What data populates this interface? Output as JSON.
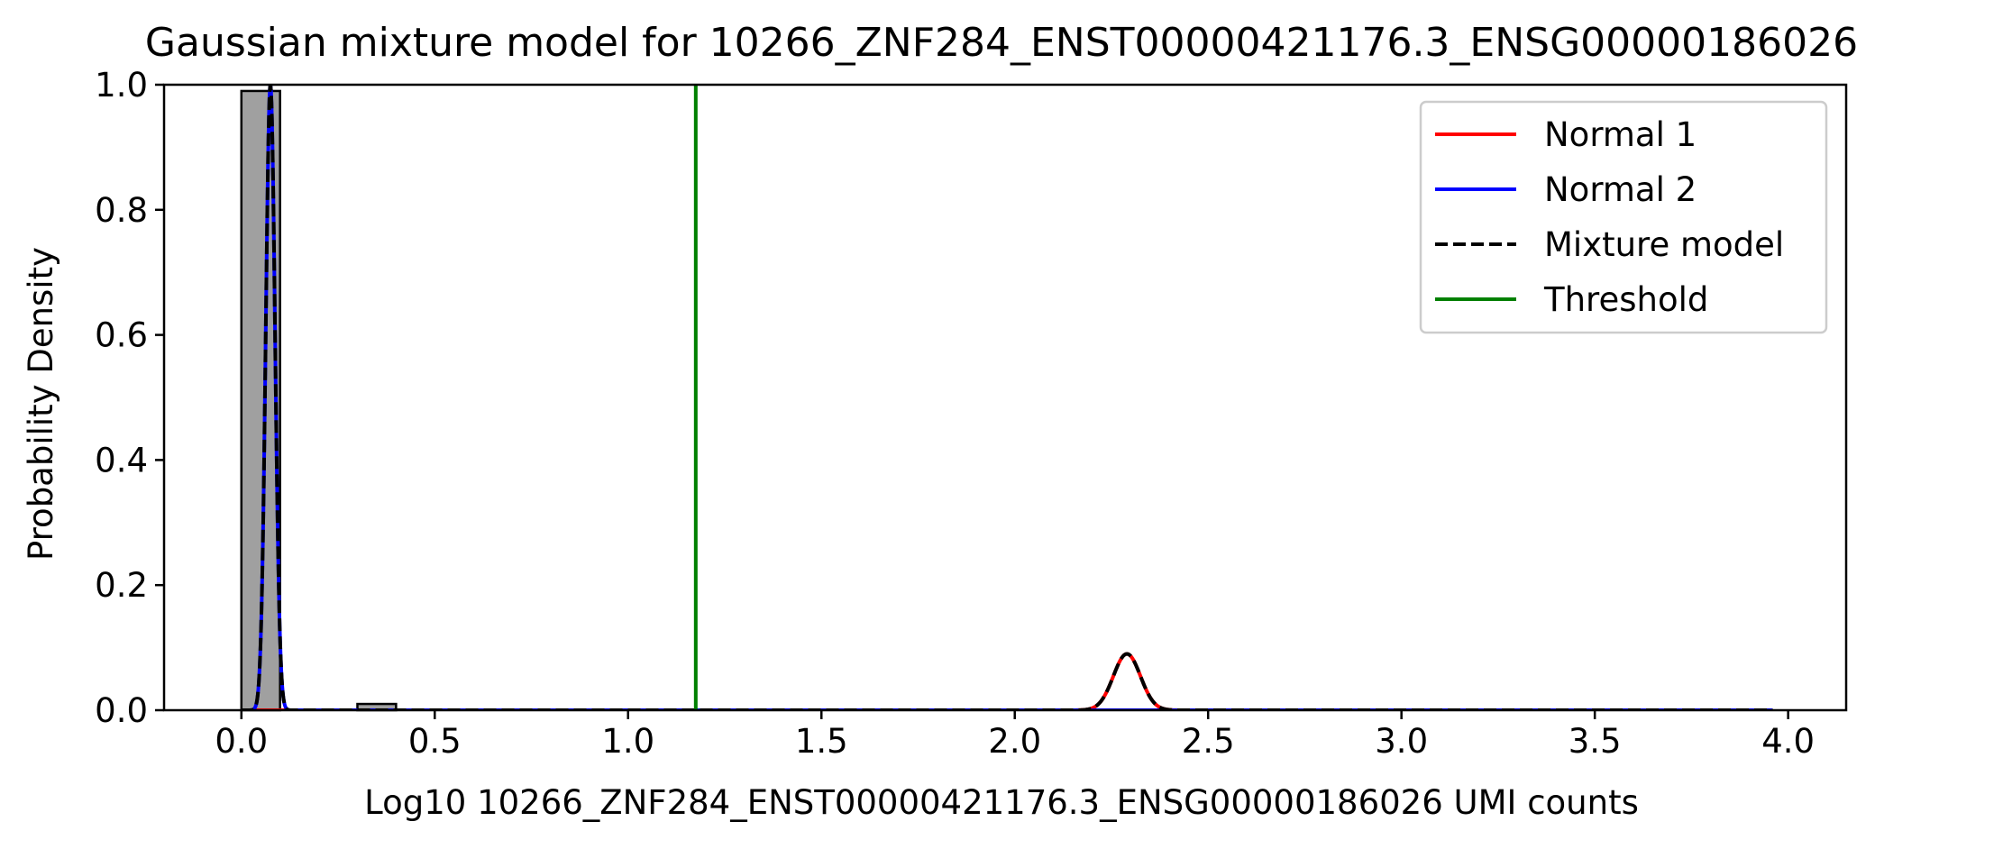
{
  "chart_data": {
    "type": "histogram",
    "title": "Gaussian mixture model for 10266_ZNF284_ENST00000421176.3_ENSG00000186026",
    "xlabel": "Log10 10266_ZNF284_ENST00000421176.3_ENSG00000186026 UMI counts",
    "ylabel": "Probability Density",
    "xlim": [
      -0.2,
      4.15
    ],
    "ylim": [
      0,
      1.0
    ],
    "xticks": [
      0.0,
      0.5,
      1.0,
      1.5,
      2.0,
      2.5,
      3.0,
      3.5,
      4.0
    ],
    "xtick_labels": [
      "0.0",
      "0.5",
      "1.0",
      "1.5",
      "2.0",
      "2.5",
      "3.0",
      "3.5",
      "4.0"
    ],
    "yticks": [
      0.0,
      0.2,
      0.4,
      0.6,
      0.8,
      1.0
    ],
    "ytick_labels": [
      "0.0",
      "0.2",
      "0.4",
      "0.6",
      "0.8",
      "1.0"
    ],
    "grid": false,
    "legend_position": "top-right",
    "histogram_bins": [
      {
        "x0": 0.0,
        "x1": 0.1,
        "density": 0.99
      },
      {
        "x0": 0.3,
        "x1": 0.4,
        "density": 0.01
      }
    ],
    "curve_x_range": [
      0.0,
      3.96
    ],
    "series": [
      {
        "name": "Normal 1",
        "color": "#ff0000",
        "style": "solid",
        "kind": "gaussian",
        "mean": 2.29,
        "sd": 0.035,
        "peak": 0.09
      },
      {
        "name": "Normal 2",
        "color": "#0000ff",
        "style": "solid",
        "kind": "gaussian",
        "mean": 0.075,
        "sd": 0.012,
        "peak": 1.0
      },
      {
        "name": "Mixture model",
        "color": "#000000",
        "style": "dashed",
        "kind": "sum"
      },
      {
        "name": "Threshold",
        "color": "#008000",
        "style": "solid",
        "kind": "vline",
        "x": 1.175
      }
    ],
    "colors": {
      "histogram_fill": "#a0a0a0",
      "histogram_edge": "#000000"
    }
  }
}
